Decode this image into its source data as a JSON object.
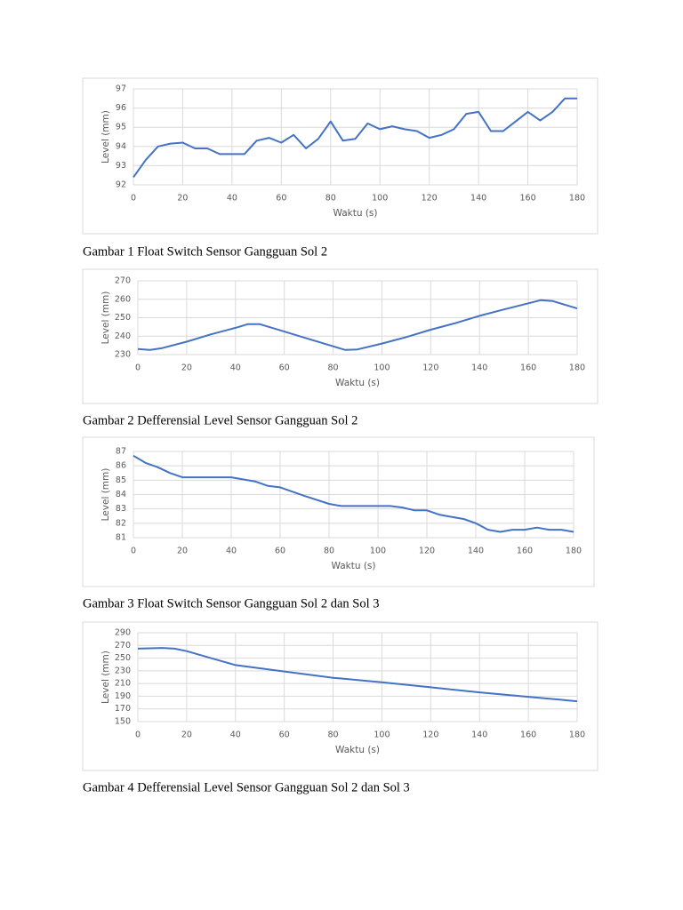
{
  "chart_data": [
    {
      "type": "line",
      "caption": "Gambar 1 Float Switch Sensor Gangguan Sol 2",
      "xlabel": "Waktu (s)",
      "ylabel": "Level (mm)",
      "color": "#4472c4",
      "grid": true,
      "x": [
        0,
        5,
        10,
        15,
        20,
        25,
        30,
        35,
        40,
        45,
        50,
        55,
        60,
        65,
        70,
        75,
        80,
        85,
        90,
        95,
        100,
        105,
        110,
        115,
        120,
        125,
        130,
        135,
        140,
        145,
        150,
        155,
        160,
        165,
        170,
        175,
        180
      ],
      "values": [
        92.4,
        93.3,
        94.0,
        94.15,
        94.2,
        93.9,
        93.9,
        93.6,
        93.6,
        93.6,
        94.3,
        94.45,
        94.2,
        94.6,
        93.9,
        94.4,
        95.3,
        94.3,
        94.4,
        95.2,
        94.9,
        95.05,
        94.9,
        94.8,
        94.45,
        94.6,
        94.9,
        95.7,
        95.8,
        94.8,
        94.8,
        95.3,
        95.8,
        95.35,
        95.8,
        96.5,
        96.5
      ],
      "xlim": [
        0,
        180
      ],
      "xticks": [
        0,
        20,
        40,
        60,
        80,
        100,
        120,
        140,
        160,
        180
      ],
      "ylim": [
        92,
        97
      ],
      "yticks": [
        92,
        93,
        94,
        95,
        96,
        97
      ]
    },
    {
      "type": "line",
      "caption": "Gambar 2 Defferensial Level Sensor Gangguan Sol 2",
      "xlabel": "Waktu (s)",
      "ylabel": "Level (mm)",
      "color": "#4472c4",
      "grid": true,
      "x": [
        0,
        5,
        10,
        20,
        30,
        40,
        45,
        50,
        60,
        70,
        80,
        85,
        90,
        100,
        110,
        120,
        130,
        140,
        150,
        160,
        165,
        170,
        180
      ],
      "values": [
        233,
        232.5,
        233.5,
        237,
        241,
        244.5,
        246.5,
        246.5,
        242.5,
        238.5,
        234.5,
        232.5,
        232.8,
        236,
        239.5,
        243.5,
        247,
        251,
        254.5,
        257.8,
        259.5,
        259,
        255
      ],
      "xlim": [
        0,
        180
      ],
      "xticks": [
        0,
        20,
        40,
        60,
        80,
        100,
        120,
        140,
        160,
        180
      ],
      "ylim": [
        230,
        270
      ],
      "yticks": [
        230,
        240,
        250,
        260,
        270
      ]
    },
    {
      "type": "line",
      "caption": "Gambar 3 Float Switch Sensor Gangguan Sol 2 dan Sol 3",
      "xlabel": "Waktu (s)",
      "ylabel": "Level (mm)",
      "color": "#4472c4",
      "grid": true,
      "x": [
        0,
        5,
        10,
        15,
        20,
        30,
        40,
        50,
        55,
        60,
        70,
        80,
        85,
        90,
        100,
        105,
        110,
        115,
        120,
        125,
        130,
        135,
        140,
        145,
        150,
        155,
        160,
        165,
        170,
        175,
        180
      ],
      "values": [
        86.7,
        86.2,
        85.9,
        85.5,
        85.2,
        85.2,
        85.2,
        84.9,
        84.6,
        84.5,
        83.9,
        83.35,
        83.2,
        83.2,
        83.2,
        83.2,
        83.1,
        82.9,
        82.9,
        82.6,
        82.45,
        82.3,
        82,
        81.55,
        81.4,
        81.55,
        81.55,
        81.7,
        81.55,
        81.55,
        81.4
      ],
      "xlim": [
        0,
        180
      ],
      "xticks": [
        0,
        20,
        40,
        60,
        80,
        100,
        120,
        140,
        160,
        180
      ],
      "ylim": [
        81,
        87
      ],
      "yticks": [
        81,
        82,
        83,
        84,
        85,
        86,
        87
      ]
    },
    {
      "type": "line",
      "caption": "Gambar 4 Defferensial Level Sensor Gangguan Sol 2 dan Sol 3",
      "xlabel": "Waktu (s)",
      "ylabel": "Level (mm)",
      "color": "#4472c4",
      "grid": true,
      "x": [
        0,
        10,
        15,
        20,
        30,
        40,
        50,
        60,
        80,
        100,
        120,
        140,
        160,
        180
      ],
      "values": [
        265,
        266,
        265,
        261,
        250,
        239,
        234,
        229,
        219,
        212,
        204,
        196,
        189,
        182
      ],
      "xlim": [
        0,
        180
      ],
      "xticks": [
        0,
        20,
        40,
        60,
        80,
        100,
        120,
        140,
        160,
        180
      ],
      "ylim": [
        150,
        290
      ],
      "yticks": [
        150,
        170,
        190,
        210,
        230,
        250,
        270,
        290
      ]
    }
  ]
}
